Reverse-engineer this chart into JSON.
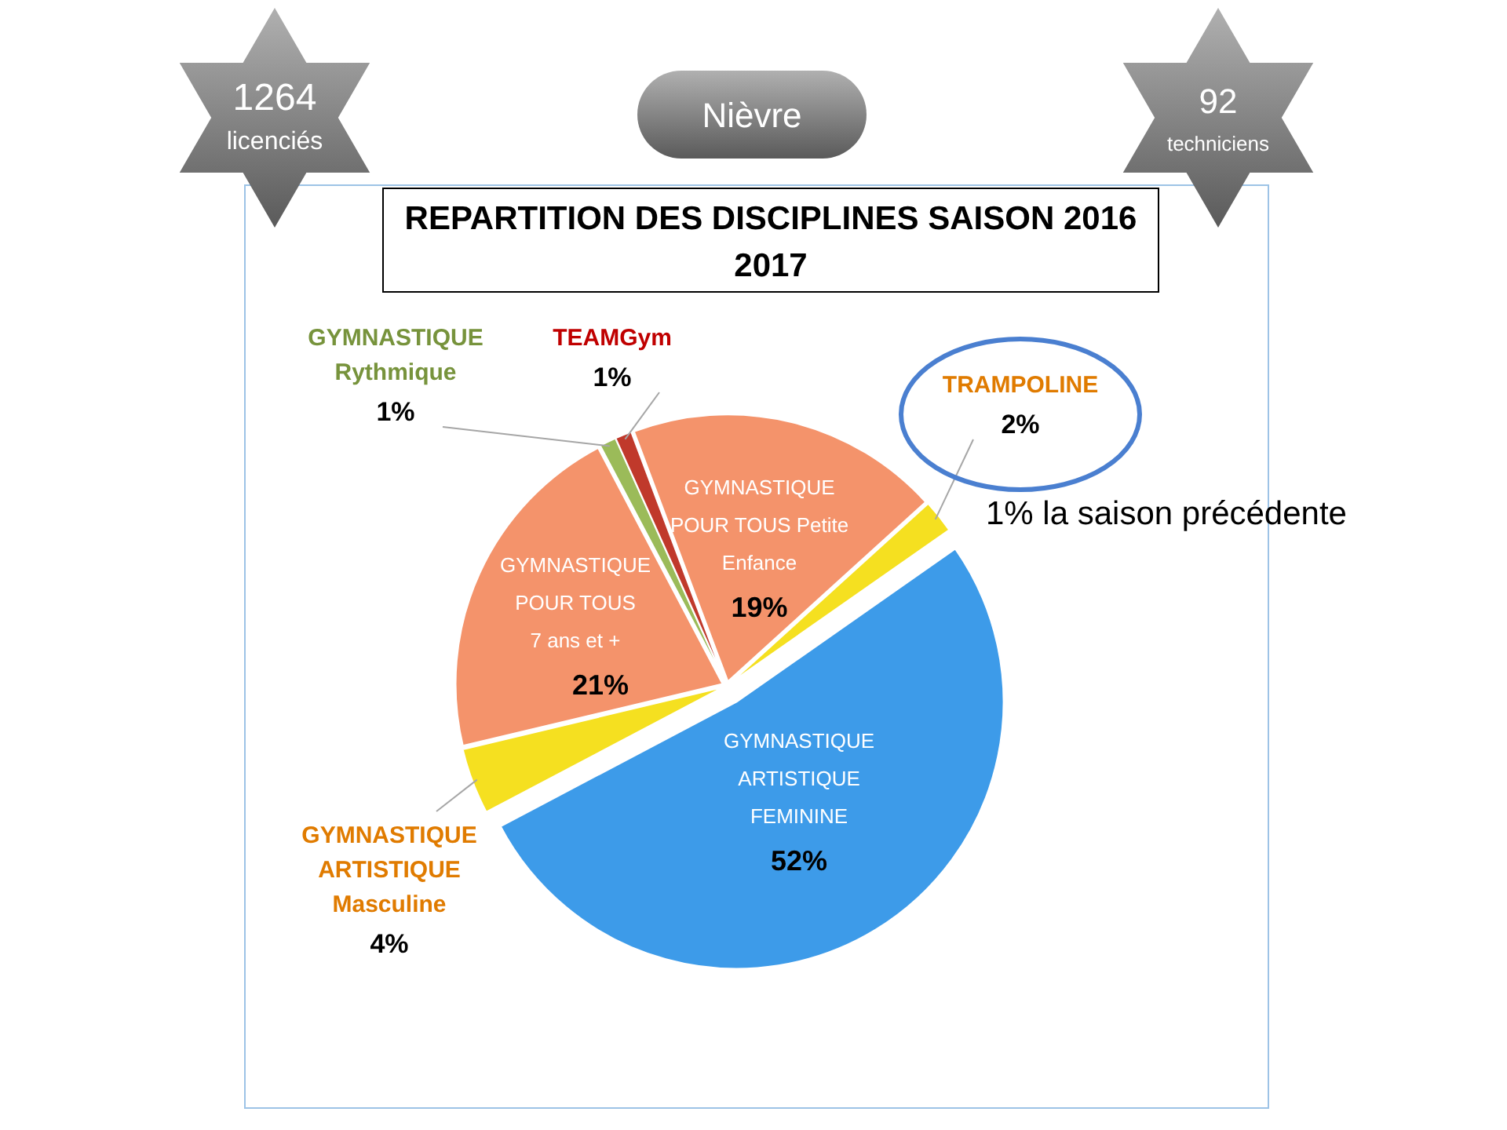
{
  "chart_data": {
    "type": "pie",
    "title": "REPARTITION DES DISCIPLINES SAISON 2016 2017",
    "categories": [
      "GYMNASTIQUE\nARTISTIQUE\nFEMININE",
      "GYMNASTIQUE\nARTISTIQUE\nMasculine",
      "GYMNASTIQUE\nPOUR TOUS\n7 ans et +",
      "GYMNASTIQUE\nRythmique",
      "TEAMGym",
      "GYMNASTIQUE\nPOUR TOUS Petite\nEnfance",
      "TRAMPOLINE"
    ],
    "values": [
      52,
      4,
      21,
      1,
      1,
      19,
      2
    ],
    "legend": false,
    "value_labels": [
      "52%",
      "4%",
      "21%",
      "1%",
      "1%",
      "19%",
      "2%"
    ],
    "colors": [
      "#3d9be9",
      "#f5e020",
      "#f4936b",
      "#9bbb59",
      "#c0392b",
      "#f4936b",
      "#f5e020"
    ],
    "annotations": [
      "1264 licenciés",
      "Nièvre",
      "92 techniciens",
      "1% la saison précédente"
    ]
  }
}
